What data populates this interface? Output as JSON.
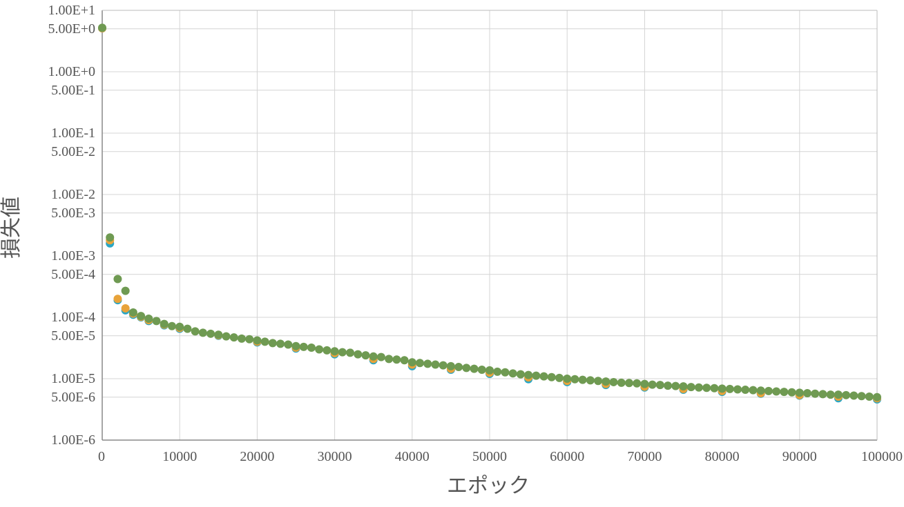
{
  "chart_data": {
    "type": "scatter",
    "xlabel": "エポック",
    "ylabel": "損失値",
    "xlim": [
      0,
      100000
    ],
    "ylim": [
      1e-06,
      10
    ],
    "y_scale": "log",
    "grid": true,
    "x_ticks": [
      0,
      10000,
      20000,
      30000,
      40000,
      50000,
      60000,
      70000,
      80000,
      90000,
      100000
    ],
    "x_tick_labels": [
      "0",
      "10000",
      "20000",
      "30000",
      "40000",
      "50000",
      "60000",
      "70000",
      "80000",
      "90000",
      "100000"
    ],
    "y_ticks": [
      {
        "value": 10,
        "label": "1.00E+1"
      },
      {
        "value": 5,
        "label": "5.00E+0"
      },
      {
        "value": 1,
        "label": "1.00E+0"
      },
      {
        "value": 0.5,
        "label": "5.00E-1"
      },
      {
        "value": 0.1,
        "label": "1.00E-1"
      },
      {
        "value": 0.05,
        "label": "5.00E-2"
      },
      {
        "value": 0.01,
        "label": "1.00E-2"
      },
      {
        "value": 0.005,
        "label": "5.00E-3"
      },
      {
        "value": 0.001,
        "label": "1.00E-3"
      },
      {
        "value": 0.0005,
        "label": "5.00E-4"
      },
      {
        "value": 0.0001,
        "label": "1.00E-4"
      },
      {
        "value": 5e-05,
        "label": "5.00E-5"
      },
      {
        "value": 1e-05,
        "label": "1.00E-5"
      },
      {
        "value": 5e-06,
        "label": "5.00E-6"
      },
      {
        "value": 1e-06,
        "label": "1.00E-6"
      }
    ],
    "series": [
      {
        "color": "#2aa6c4",
        "x": [
          0,
          1000,
          2000,
          3000,
          4000,
          5000,
          6000,
          8000,
          10000,
          15000,
          20000,
          25000,
          30000,
          35000,
          40000,
          45000,
          50000,
          55000,
          60000,
          65000,
          70000,
          75000,
          80000,
          85000,
          90000,
          95000,
          100000
        ],
        "y": [
          5.1,
          0.0016,
          0.00019,
          0.00013,
          0.00011,
          0.0001,
          8.7e-05,
          7.4e-05,
          6.5e-05,
          5e-05,
          3.9e-05,
          3.1e-05,
          2.5e-05,
          2e-05,
          1.6e-05,
          1.4e-05,
          1.2e-05,
          9.8e-06,
          8.8e-06,
          7.9e-06,
          7.2e-06,
          6.6e-06,
          6.1e-06,
          5.7e-06,
          5.3e-06,
          4.8e-06,
          4.6e-06
        ]
      },
      {
        "color": "#e8a33a",
        "x": [
          0,
          1000,
          2000,
          3000,
          4000,
          5000,
          6000,
          8000,
          10000,
          15000,
          20000,
          25000,
          30000,
          35000,
          40000,
          45000,
          50000,
          55000,
          60000,
          65000,
          70000,
          75000,
          80000,
          85000,
          90000,
          95000,
          100000
        ],
        "y": [
          5.1,
          0.0018,
          0.0002,
          0.00014,
          0.000115,
          0.000102,
          9e-05,
          7.6e-05,
          6.7e-05,
          5.1e-05,
          4e-05,
          3.2e-05,
          2.6e-05,
          2.1e-05,
          1.7e-05,
          1.45e-05,
          1.25e-05,
          1.05e-05,
          9.2e-06,
          8.2e-06,
          7.4e-06,
          6.8e-06,
          6.3e-06,
          5.8e-06,
          5.4e-06,
          5.1e-06,
          4.8e-06
        ]
      },
      {
        "color": "#6f9a52",
        "x": [
          0,
          1000,
          2000,
          3000,
          4000,
          5000,
          6000,
          7000,
          8000,
          9000,
          10000,
          11000,
          12000,
          13000,
          14000,
          15000,
          16000,
          17000,
          18000,
          19000,
          20000,
          21000,
          22000,
          23000,
          24000,
          25000,
          26000,
          27000,
          28000,
          29000,
          30000,
          31000,
          32000,
          33000,
          34000,
          35000,
          36000,
          37000,
          38000,
          39000,
          40000,
          41000,
          42000,
          43000,
          44000,
          45000,
          46000,
          47000,
          48000,
          49000,
          50000,
          51000,
          52000,
          53000,
          54000,
          55000,
          56000,
          57000,
          58000,
          59000,
          60000,
          61000,
          62000,
          63000,
          64000,
          65000,
          66000,
          67000,
          68000,
          69000,
          70000,
          71000,
          72000,
          73000,
          74000,
          75000,
          76000,
          77000,
          78000,
          79000,
          80000,
          81000,
          82000,
          83000,
          84000,
          85000,
          86000,
          87000,
          88000,
          89000,
          90000,
          91000,
          92000,
          93000,
          94000,
          95000,
          96000,
          97000,
          98000,
          99000,
          100000
        ],
        "y": [
          5.2,
          0.002,
          0.00042,
          0.00027,
          0.00012,
          0.000105,
          9.5e-05,
          8.7e-05,
          7.8e-05,
          7.2e-05,
          7e-05,
          6.5e-05,
          5.9e-05,
          5.6e-05,
          5.4e-05,
          5.2e-05,
          4.9e-05,
          4.7e-05,
          4.5e-05,
          4.4e-05,
          4.2e-05,
          4e-05,
          3.8e-05,
          3.7e-05,
          3.6e-05,
          3.4e-05,
          3.3e-05,
          3.2e-05,
          3e-05,
          2.9e-05,
          2.8e-05,
          2.7e-05,
          2.65e-05,
          2.5e-05,
          2.4e-05,
          2.3e-05,
          2.25e-05,
          2.1e-05,
          2.05e-05,
          2e-05,
          1.85e-05,
          1.8e-05,
          1.75e-05,
          1.7e-05,
          1.65e-05,
          1.6e-05,
          1.55e-05,
          1.5e-05,
          1.45e-05,
          1.4e-05,
          1.37e-05,
          1.3e-05,
          1.27e-05,
          1.22e-05,
          1.18e-05,
          1.15e-05,
          1.12e-05,
          1.09e-05,
          1.06e-05,
          1.03e-05,
          1e-05,
          9.8e-06,
          9.6e-06,
          9.4e-06,
          9.2e-06,
          9e-06,
          8.8e-06,
          8.6e-06,
          8.5e-06,
          8.4e-06,
          8.2e-06,
          8e-06,
          7.9e-06,
          7.7e-06,
          7.6e-06,
          7.5e-06,
          7.3e-06,
          7.2e-06,
          7.1e-06,
          7e-06,
          6.9e-06,
          6.8e-06,
          6.7e-06,
          6.6e-06,
          6.5e-06,
          6.4e-06,
          6.3e-06,
          6.2e-06,
          6.1e-06,
          6e-06,
          5.9e-06,
          5.8e-06,
          5.7e-06,
          5.6e-06,
          5.5e-06,
          5.5e-06,
          5.4e-06,
          5.3e-06,
          5.2e-06,
          5.1e-06,
          5e-06
        ]
      }
    ]
  }
}
